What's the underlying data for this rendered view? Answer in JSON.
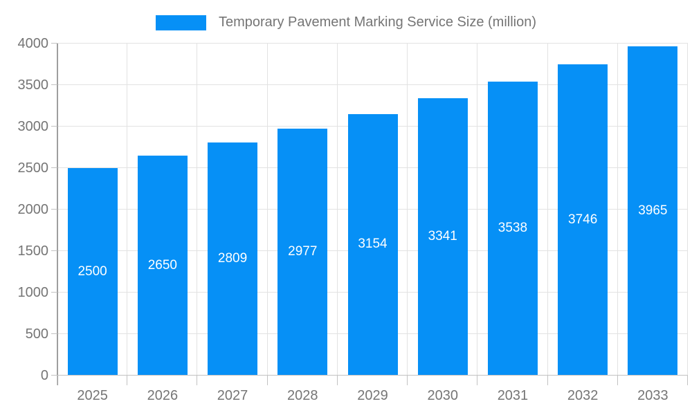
{
  "chart_data": {
    "type": "bar",
    "title": "Temporary Pavement Marking Service Size (million)",
    "categories": [
      "2025",
      "2026",
      "2027",
      "2028",
      "2029",
      "2030",
      "2031",
      "2032",
      "2033"
    ],
    "values": [
      2500,
      2650,
      2809,
      2977,
      3154,
      3341,
      3538,
      3746,
      3965
    ],
    "xlabel": "",
    "ylabel": "",
    "ylim": [
      0,
      4000
    ],
    "ytick_step": 500,
    "yticks": [
      0,
      500,
      1000,
      1500,
      2000,
      2500,
      3000,
      3500,
      4000
    ],
    "grid": true,
    "legend_position": "top",
    "style": {
      "bar_color": "#0690f6",
      "value_label_color": "#ffffff",
      "tick_text_color": "#757575",
      "grid_color": "#e2e2e2",
      "axis_color": "#9e9e9e",
      "tick_color": "#c2c2c2",
      "background": "#ffffff"
    }
  }
}
